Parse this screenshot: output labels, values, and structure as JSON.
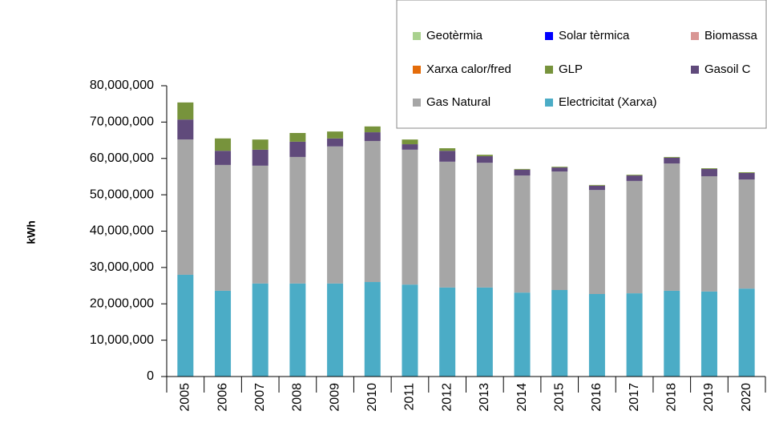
{
  "chart_data": {
    "type": "stacked_bar",
    "y_label": "kWh",
    "categories": [
      "2005",
      "2006",
      "2007",
      "2008",
      "2009",
      "2010",
      "2011",
      "2012",
      "2013",
      "2014",
      "2015",
      "2016",
      "2017",
      "2018",
      "2019",
      "2020"
    ],
    "series": [
      {
        "name": "Electricitat (Xarxa)",
        "color": "#4bacc6",
        "values": [
          28000000,
          23600000,
          25600000,
          25600000,
          25600000,
          26000000,
          25300000,
          24500000,
          24500000,
          23100000,
          23800000,
          22700000,
          22900000,
          23600000,
          23400000,
          24200000
        ]
      },
      {
        "name": "Gas Natural",
        "color": "#a6a6a6",
        "values": [
          37200000,
          34600000,
          32400000,
          34800000,
          37700000,
          38800000,
          37100000,
          34600000,
          34300000,
          32200000,
          32600000,
          28600000,
          30900000,
          35000000,
          31700000,
          30000000
        ]
      },
      {
        "name": "Gasoil C",
        "color": "#604a7b",
        "values": [
          5500000,
          3900000,
          4400000,
          4200000,
          2200000,
          2400000,
          1500000,
          3000000,
          1800000,
          1600000,
          1100000,
          1200000,
          1500000,
          1600000,
          2000000,
          1800000
        ]
      },
      {
        "name": "GLP",
        "color": "#77933c",
        "values": [
          4700000,
          3400000,
          2800000,
          2400000,
          1900000,
          1600000,
          1300000,
          700000,
          400000,
          200000,
          200000,
          200000,
          200000,
          200000,
          200000,
          200000
        ]
      },
      {
        "name": "Xarxa calor/fred",
        "color": "#e46c0a",
        "values": [
          0,
          0,
          0,
          0,
          0,
          0,
          0,
          0,
          0,
          0,
          0,
          0,
          0,
          0,
          0,
          0
        ]
      },
      {
        "name": "Biomassa",
        "color": "#d99694",
        "values": [
          0,
          0,
          0,
          0,
          0,
          0,
          0,
          0,
          0,
          0,
          0,
          0,
          0,
          0,
          0,
          0
        ]
      },
      {
        "name": "Solar tèrmica",
        "color": "#0000ff",
        "values": [
          0,
          0,
          0,
          0,
          0,
          0,
          0,
          0,
          0,
          0,
          0,
          0,
          0,
          0,
          0,
          0
        ]
      },
      {
        "name": "Geotèrmia",
        "color": "#a9d18e",
        "values": [
          0,
          0,
          0,
          0,
          0,
          0,
          0,
          0,
          0,
          0,
          0,
          0,
          0,
          0,
          0,
          0
        ]
      }
    ],
    "ylim": [
      0,
      80000000
    ],
    "yticks": [
      0,
      {
        "value": 10000000,
        "label": "10,000,000"
      },
      {
        "value": 20000000,
        "label": "20,000,000"
      },
      {
        "value": 30000000,
        "label": "30,000,000"
      },
      {
        "value": 40000000,
        "label": "40,000,000"
      },
      {
        "value": 50000000,
        "label": "50,000,000"
      },
      {
        "value": 60000000,
        "label": "60,000,000"
      },
      {
        "value": 70000000,
        "label": "70,000,000"
      },
      {
        "value": 80000000,
        "label": "80,000,000"
      }
    ],
    "grid": false
  }
}
